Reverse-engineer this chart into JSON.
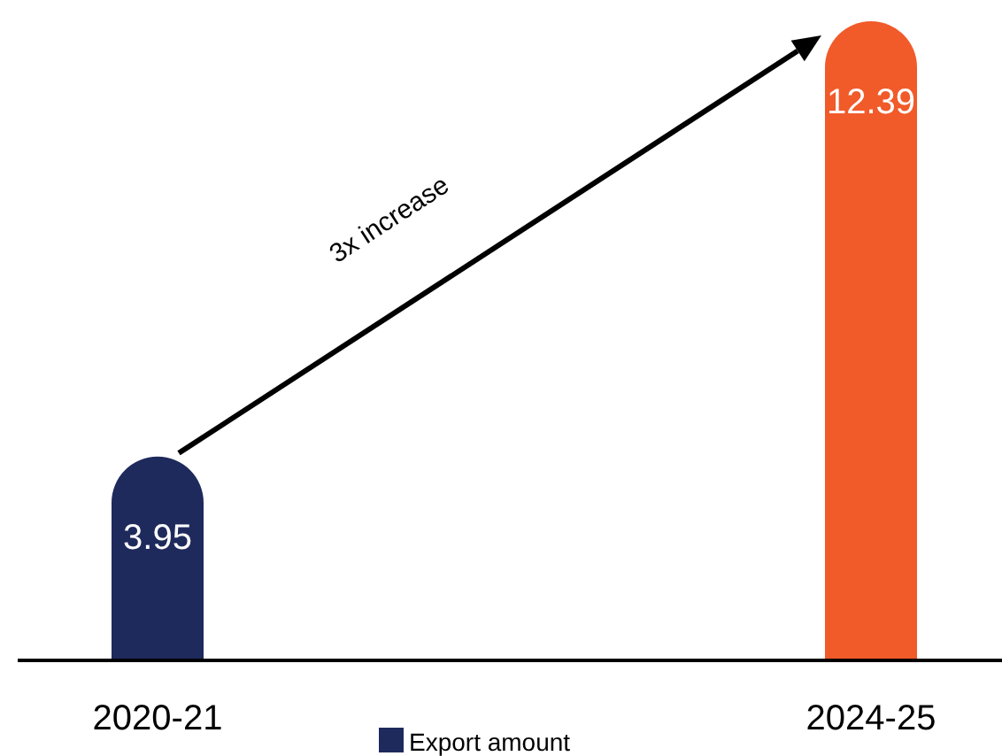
{
  "chart_data": {
    "type": "bar",
    "categories": [
      "2020-21",
      "2024-25"
    ],
    "series": [
      {
        "name": "Export amount",
        "color": "#1f2a5c",
        "colors": [
          "#1f2a5c",
          "#f15a29"
        ],
        "values": [
          3.95,
          12.39
        ]
      }
    ],
    "data_labels": true,
    "legend": "bottom",
    "annotations": [
      "3x increase"
    ]
  }
}
